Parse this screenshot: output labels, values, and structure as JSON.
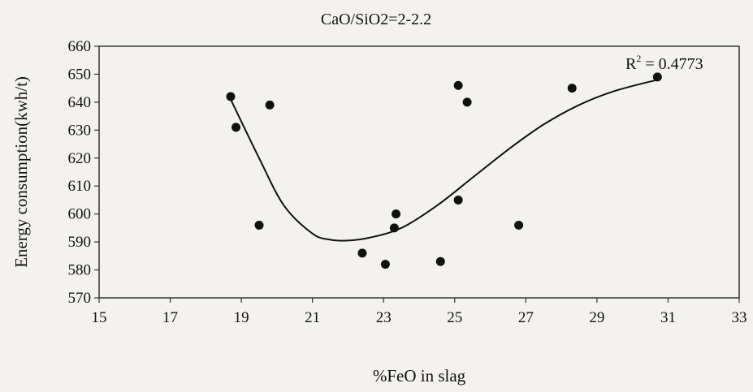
{
  "chart_data": {
    "type": "scatter",
    "title": "CaO/SiO2=2-2.2",
    "xlabel": "%FeO in slag",
    "ylabel": "Energy consumption(kwh/t)",
    "xlim": [
      15,
      33
    ],
    "ylim": [
      570,
      660
    ],
    "xticks": [
      15,
      17,
      19,
      21,
      23,
      25,
      27,
      29,
      31,
      33
    ],
    "yticks": [
      570,
      580,
      590,
      600,
      610,
      620,
      630,
      640,
      650,
      660
    ],
    "grid": false,
    "points": [
      {
        "x": 18.7,
        "y": 642
      },
      {
        "x": 18.85,
        "y": 631
      },
      {
        "x": 19.5,
        "y": 596
      },
      {
        "x": 19.8,
        "y": 639
      },
      {
        "x": 22.4,
        "y": 586
      },
      {
        "x": 23.05,
        "y": 582
      },
      {
        "x": 23.3,
        "y": 595
      },
      {
        "x": 23.35,
        "y": 600
      },
      {
        "x": 24.6,
        "y": 583
      },
      {
        "x": 25.1,
        "y": 646
      },
      {
        "x": 25.1,
        "y": 605
      },
      {
        "x": 25.35,
        "y": 640
      },
      {
        "x": 26.8,
        "y": 596
      },
      {
        "x": 28.3,
        "y": 645
      },
      {
        "x": 30.7,
        "y": 649
      }
    ],
    "trendline": {
      "type": "polynomial",
      "points": [
        {
          "x": 18.7,
          "y": 641
        },
        {
          "x": 19.5,
          "y": 620
        },
        {
          "x": 20.2,
          "y": 603
        },
        {
          "x": 21.0,
          "y": 593
        },
        {
          "x": 21.5,
          "y": 590.8
        },
        {
          "x": 22.0,
          "y": 590.5
        },
        {
          "x": 22.6,
          "y": 591.5
        },
        {
          "x": 23.5,
          "y": 595
        },
        {
          "x": 24.5,
          "y": 603
        },
        {
          "x": 25.5,
          "y": 613
        },
        {
          "x": 26.5,
          "y": 623
        },
        {
          "x": 27.5,
          "y": 632
        },
        {
          "x": 28.5,
          "y": 639
        },
        {
          "x": 29.5,
          "y": 644
        },
        {
          "x": 30.7,
          "y": 648
        }
      ]
    },
    "annotation": {
      "r2_label": "R",
      "r2_exponent": "2",
      "r2_value": " = 0.4773"
    },
    "colors": {
      "marker": "#111111",
      "line": "#111111",
      "background": "#f4f2ef"
    }
  }
}
